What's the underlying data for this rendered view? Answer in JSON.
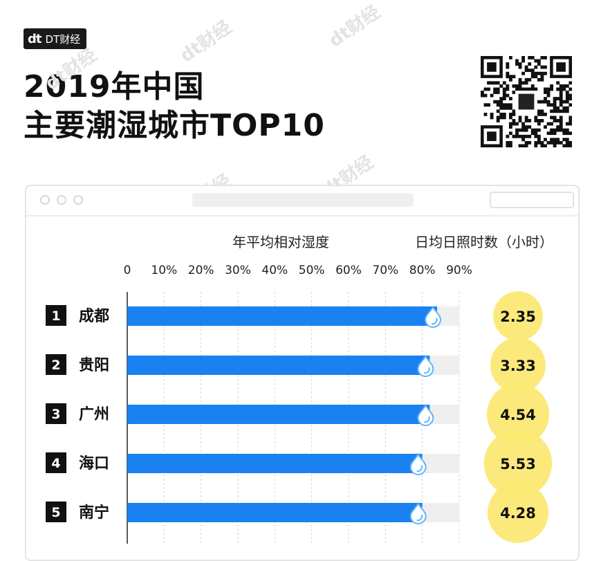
{
  "brand": {
    "logo_text": "dt",
    "name": "DT财经"
  },
  "header": {
    "title_line1": "2019年中国",
    "title_line2": "主要潮湿城市TOP10"
  },
  "watermark": {
    "text": "dt财经"
  },
  "chart_data": {
    "type": "bar",
    "orientation": "horizontal",
    "xlabel": "年平均相对湿度",
    "xlim": [
      0,
      90
    ],
    "xticks": [
      "0",
      "10%",
      "20%",
      "30%",
      "40%",
      "50%",
      "60%",
      "70%",
      "80%",
      "90%"
    ],
    "categories": [
      {
        "rank": "1",
        "city": "成都"
      },
      {
        "rank": "2",
        "city": "贵阳"
      },
      {
        "rank": "3",
        "city": "广州"
      },
      {
        "rank": "4",
        "city": "海口"
      },
      {
        "rank": "5",
        "city": "南宁"
      }
    ],
    "series": [
      {
        "values": [
          84,
          82,
          82,
          80,
          80
        ]
      }
    ],
    "sunshine": {
      "label": "日均日照时数（小时）",
      "values": [
        "2.35",
        "3.33",
        "4.54",
        "5.53",
        "4.28"
      ]
    },
    "colors": {
      "bar": "#1a82f0",
      "track": "#efefef",
      "bubble": "#fbe870",
      "drop": "#5fb4ff"
    }
  }
}
